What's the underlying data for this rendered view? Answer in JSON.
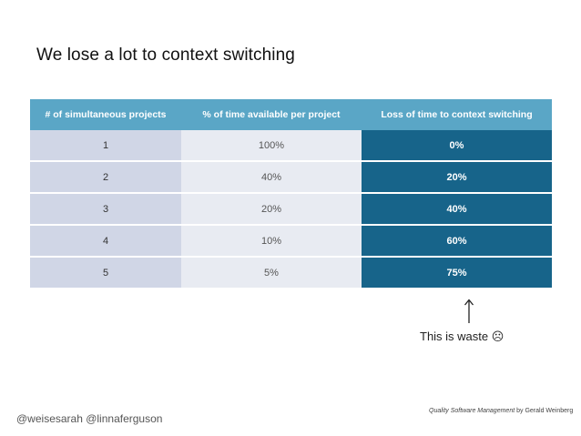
{
  "slide": {
    "title": "We lose a lot to context switching",
    "note": "This is waste",
    "note_emoticon": "☹",
    "citation_book": "Quality Software Management",
    "citation_author": " by Gerald Weinberg",
    "handles": "@weisesarah @linnaferguson"
  },
  "table": {
    "headers": [
      "# of simultaneous projects",
      "% of time available per project",
      "Loss of time to context switching"
    ],
    "rows": [
      [
        "1",
        "100%",
        "0%"
      ],
      [
        "2",
        "40%",
        "20%"
      ],
      [
        "3",
        "20%",
        "40%"
      ],
      [
        "4",
        "10%",
        "60%"
      ],
      [
        "5",
        "5%",
        "75%"
      ]
    ]
  },
  "colors": {
    "header_bg": "#5aa6c6",
    "col1_bg": "#d0d6e6",
    "col2_bg": "#e8ebf2",
    "col3_bg": "#17648a"
  }
}
